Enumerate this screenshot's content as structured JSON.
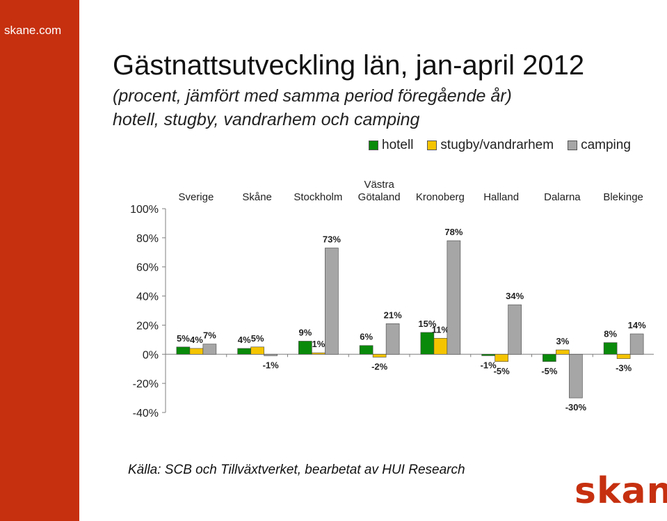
{
  "sidebar": {
    "site_name": "skane.com"
  },
  "header": {
    "title": "Gästnattsutveckling län, jan-april 2012",
    "subtitle1": "(procent, jämfört med samma period föregående år)",
    "subtitle2": "hotell, stugby, vandrarhem och camping"
  },
  "source": "Källa: SCB och Tillväxtverket, bearbetat av HUI Research",
  "logo_text": "skane",
  "colors": {
    "brand": "#c6300f",
    "hotell": "#0a8a0a",
    "stugby": "#f5c400",
    "camping": "#a6a6a6"
  },
  "chart_data": {
    "type": "bar",
    "categories": [
      {
        "line1": "",
        "line2": "Sverige"
      },
      {
        "line1": "",
        "line2": "Skåne"
      },
      {
        "line1": "",
        "line2": "Stockholm"
      },
      {
        "line1": "Västra",
        "line2": "Götaland"
      },
      {
        "line1": "",
        "line2": "Kronoberg"
      },
      {
        "line1": "",
        "line2": "Halland"
      },
      {
        "line1": "",
        "line2": "Dalarna"
      },
      {
        "line1": "",
        "line2": "Blekinge"
      }
    ],
    "series": [
      {
        "name": "hotell",
        "values": [
          5,
          4,
          9,
          6,
          15,
          -1,
          -5,
          8
        ],
        "labels": [
          "5%",
          "4%",
          "9%",
          "6%",
          "15%",
          "-1%",
          "-5%",
          "8%"
        ]
      },
      {
        "name": "stugby/vandrarhem",
        "values": [
          4,
          5,
          1,
          -2,
          11,
          -5,
          3,
          -3
        ],
        "labels": [
          "4%",
          "5%",
          "1%",
          "-2%",
          "11%",
          "-5%",
          "3%",
          "-3%"
        ]
      },
      {
        "name": "camping",
        "values": [
          7,
          -1,
          73,
          21,
          78,
          34,
          -30,
          14
        ],
        "labels": [
          "7%",
          "-1%",
          "73%",
          "21%",
          "78%",
          "34%",
          "-30%",
          "14%"
        ]
      }
    ],
    "y_ticks": [
      "100%",
      "80%",
      "60%",
      "40%",
      "20%",
      "0%",
      "-20%",
      "-40%"
    ],
    "ylim": [
      -40,
      100
    ],
    "grid": false,
    "legend_position": "top-right"
  }
}
